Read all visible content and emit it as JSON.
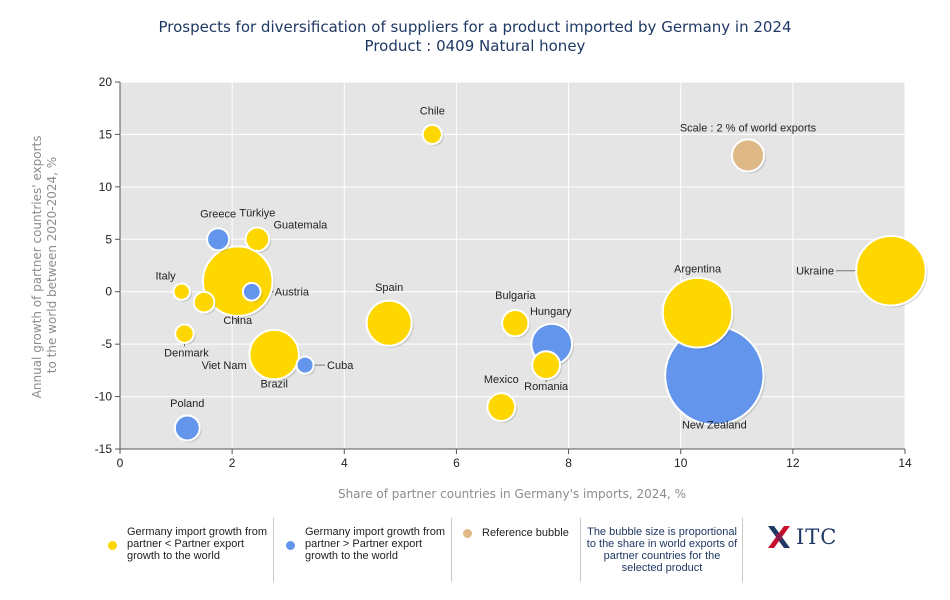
{
  "title": "Prospects for diversification of suppliers for a product imported by Germany in 2024",
  "subtitle": "Product : 0409 Natural honey",
  "colors": {
    "yellow": "#ffd700",
    "blue": "#6495ed",
    "reference": "#deb887",
    "plot_bg": "#e5e5e5"
  },
  "chart_data": {
    "type": "scatter",
    "xlabel": "Share of partner countries in Germany's imports, 2024, %",
    "ylabel": "Annual growth of partner countries' exports to the world between 2020-2024, %",
    "xlim": [
      0,
      14
    ],
    "ylim": [
      -15,
      20
    ],
    "xticks": [
      0,
      2,
      4,
      6,
      8,
      10,
      12,
      14
    ],
    "yticks": [
      20,
      15,
      10,
      5,
      0,
      -5,
      -10,
      -15
    ],
    "grid": true,
    "points": [
      {
        "name": "Chile",
        "x": 5.57,
        "y": 15,
        "size": 0.5,
        "group": "yellow"
      },
      {
        "name": "Greece",
        "x": 1.75,
        "y": 5,
        "size": 0.7,
        "group": "blue"
      },
      {
        "name": "Türkiye",
        "x": 2.45,
        "y": 5,
        "size": 0.8,
        "group": "yellow"
      },
      {
        "name": "Guatemala",
        "x": 2.45,
        "y": 5,
        "size": 0,
        "group": "yellow"
      },
      {
        "name": "Italy",
        "x": 1.1,
        "y": 0,
        "size": 0.3,
        "group": "yellow"
      },
      {
        "name": "Austria",
        "x": 2.35,
        "y": 0,
        "size": 0.4,
        "group": "blue"
      },
      {
        "name": "China",
        "x": 2.1,
        "y": 1,
        "size": 4.0,
        "group": "yellow"
      },
      {
        "name": "Spain",
        "x": 4.8,
        "y": -3,
        "size": 2.3,
        "group": "yellow"
      },
      {
        "name": "Bulgaria",
        "x": 7.05,
        "y": -3,
        "size": 1.0,
        "group": "yellow"
      },
      {
        "name": "Hungary",
        "x": 7.7,
        "y": -5,
        "size": 2.0,
        "group": "blue"
      },
      {
        "name": "Argentina",
        "x": 10.3,
        "y": -2,
        "size": 4.0,
        "group": "yellow"
      },
      {
        "name": "Ukraine",
        "x": 13.75,
        "y": 2,
        "size": 4.0,
        "group": "yellow"
      },
      {
        "name": "Denmark",
        "x": 1.15,
        "y": -4,
        "size": 0.45,
        "group": "yellow"
      },
      {
        "name": "Viet Nam",
        "x": 1.5,
        "y": -1,
        "size": 0.6,
        "group": "yellow"
      },
      {
        "name": "Brazil",
        "x": 2.75,
        "y": -6,
        "size": 2.6,
        "group": "yellow"
      },
      {
        "name": "Cuba",
        "x": 3.3,
        "y": -7,
        "size": 0.35,
        "group": "blue"
      },
      {
        "name": "Poland",
        "x": 1.2,
        "y": -13,
        "size": 0.9,
        "group": "blue"
      },
      {
        "name": "Mexico",
        "x": 6.8,
        "y": -11,
        "size": 1.1,
        "group": "yellow"
      },
      {
        "name": "Romania",
        "x": 7.6,
        "y": -7,
        "size": 1.1,
        "group": "yellow"
      },
      {
        "name": "New Zealand",
        "x": 10.6,
        "y": -8,
        "size": 6.0,
        "group": "blue"
      },
      {
        "name": "Scale : 2 % of world exports",
        "x": 11.2,
        "y": 13,
        "size": 1.4,
        "group": "reference"
      }
    ]
  },
  "legend": {
    "yellow_text": "Germany import growth from partner < Partner export growth to the world",
    "blue_text": "Germany import growth from partner > Partner export growth to the world",
    "reference_text": "Reference bubble",
    "note": "The bubble size is proportional to the share in world exports of partner countries for the selected product"
  },
  "logo": {
    "text": "ITC"
  }
}
